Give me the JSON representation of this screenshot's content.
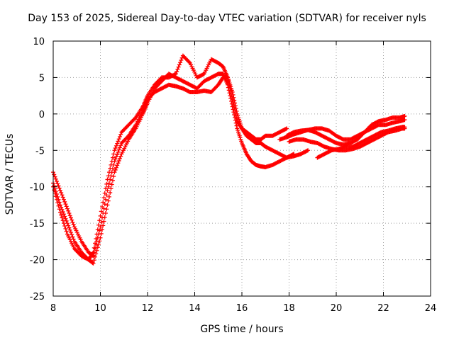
{
  "chart_data": {
    "type": "scatter",
    "title": "Day 153 of 2025, Sidereal Day-to-day VTEC variation (SDTVAR) for receiver nyls",
    "xlabel": "GPS time / hours",
    "ylabel": "SDTVAR / TECUs",
    "xlim": [
      8,
      24
    ],
    "ylim": [
      -25,
      10
    ],
    "xticks": [
      "8",
      "10",
      "12",
      "14",
      "16",
      "18",
      "20",
      "22",
      "24"
    ],
    "yticks": [
      "10",
      "5",
      "0",
      "-5",
      "-10",
      "-15",
      "-20",
      "-25"
    ],
    "grid": true,
    "marker": "plus",
    "color": "#ff0000",
    "series": [
      {
        "name": "track-1",
        "x": [
          8.0,
          8.3,
          8.6,
          8.9,
          9.2,
          9.5,
          9.7,
          10.0,
          10.3,
          10.6,
          10.9,
          11.2,
          11.5,
          11.8,
          12.0,
          12.3,
          12.6,
          12.9,
          13.2,
          13.5,
          13.8,
          14.1,
          14.4,
          14.7,
          15.0,
          15.2,
          15.4,
          15.6,
          15.8,
          16.0,
          16.2,
          16.4,
          16.6,
          16.8,
          17.0,
          17.3,
          17.6,
          17.9,
          18.2,
          18.5,
          18.8
        ],
        "y": [
          -8.0,
          -10.5,
          -13.0,
          -15.5,
          -17.5,
          -19.0,
          -19.5,
          -15.5,
          -10.5,
          -6.5,
          -4.0,
          -3.0,
          -1.5,
          0.5,
          2.0,
          3.0,
          3.5,
          4.0,
          3.8,
          3.5,
          3.0,
          3.0,
          3.2,
          3.0,
          4.0,
          5.0,
          5.0,
          3.0,
          0.0,
          -2.0,
          -3.0,
          -3.5,
          -4.0,
          -4.0,
          -4.5,
          -5.0,
          -5.5,
          -6.0,
          -5.8,
          -5.5,
          -5.0
        ]
      },
      {
        "name": "track-2",
        "x": [
          8.0,
          8.3,
          8.6,
          8.9,
          9.2,
          9.5,
          9.7,
          10.0,
          10.3,
          10.6,
          10.9,
          11.2,
          11.5,
          11.8,
          12.0,
          12.3,
          12.6,
          12.9,
          13.2,
          13.5,
          13.8,
          14.1,
          14.4,
          14.7,
          15.0,
          15.2,
          15.4,
          15.6,
          15.8,
          16.0,
          16.2,
          16.4,
          16.6,
          16.8,
          17.0,
          17.3,
          17.6,
          17.9,
          18.2
        ],
        "y": [
          -9.5,
          -12.5,
          -15.0,
          -17.5,
          -19.0,
          -20.0,
          -20.5,
          -17.0,
          -12.5,
          -8.0,
          -5.5,
          -3.5,
          -2.0,
          0.0,
          1.5,
          3.5,
          4.5,
          5.5,
          5.0,
          4.5,
          4.0,
          3.5,
          4.5,
          5.0,
          5.5,
          5.5,
          4.0,
          1.0,
          -2.0,
          -4.0,
          -5.5,
          -6.5,
          -7.0,
          -7.2,
          -7.3,
          -7.0,
          -6.5,
          -6.0,
          -5.5
        ]
      },
      {
        "name": "track-3",
        "x": [
          8.0,
          8.3,
          8.6,
          8.9,
          9.2,
          9.5,
          9.7,
          10.0,
          10.3,
          10.6,
          10.9,
          11.2,
          11.5,
          11.8,
          12.0,
          12.3,
          12.6,
          12.9,
          13.2,
          13.5,
          13.8,
          14.1,
          14.4,
          14.7,
          15.0,
          15.2,
          15.4,
          15.6,
          15.8,
          16.0,
          16.2,
          16.4,
          16.6,
          16.8,
          17.0,
          17.3,
          17.6,
          17.9
        ],
        "y": [
          -10.0,
          -13.5,
          -16.5,
          -18.5,
          -19.5,
          -20.0,
          -19.0,
          -14.0,
          -9.0,
          -5.0,
          -2.5,
          -1.5,
          -0.5,
          1.0,
          2.5,
          4.0,
          5.0,
          5.0,
          5.5,
          8.0,
          7.0,
          5.0,
          5.5,
          7.5,
          7.0,
          6.5,
          5.0,
          2.0,
          -1.0,
          -2.0,
          -2.5,
          -3.0,
          -3.5,
          -3.5,
          -3.0,
          -3.0,
          -2.5,
          -2.0
        ]
      },
      {
        "name": "track-4",
        "x": [
          17.9,
          18.2,
          18.5,
          18.8,
          19.1,
          19.4,
          19.7,
          20.0,
          20.3,
          20.6,
          20.9,
          21.2,
          21.5,
          21.8,
          22.1,
          22.4,
          22.7,
          22.9
        ],
        "y": [
          -3.0,
          -2.5,
          -2.3,
          -2.2,
          -2.5,
          -3.0,
          -3.5,
          -4.0,
          -4.2,
          -4.0,
          -3.5,
          -2.5,
          -1.5,
          -1.0,
          -0.8,
          -0.5,
          -0.5,
          -0.3
        ]
      },
      {
        "name": "track-5",
        "x": [
          17.6,
          17.9,
          18.2,
          18.5,
          18.8,
          19.1,
          19.4,
          19.7,
          20.0,
          20.3,
          20.6,
          20.9,
          21.2,
          21.5,
          21.8,
          22.1,
          22.4,
          22.7,
          22.9
        ],
        "y": [
          -3.5,
          -3.2,
          -2.8,
          -2.5,
          -2.2,
          -2.0,
          -2.0,
          -2.3,
          -3.0,
          -3.5,
          -3.5,
          -3.0,
          -2.5,
          -2.0,
          -1.5,
          -1.5,
          -1.2,
          -1.0,
          -0.8
        ]
      },
      {
        "name": "track-6",
        "x": [
          18.0,
          18.3,
          18.6,
          18.9,
          19.2,
          19.5,
          19.8,
          20.1,
          20.4,
          20.7,
          21.0,
          21.3,
          21.6,
          21.9,
          22.2,
          22.5,
          22.8,
          22.9
        ],
        "y": [
          -3.8,
          -3.5,
          -3.5,
          -3.8,
          -4.0,
          -4.5,
          -4.8,
          -5.0,
          -5.0,
          -4.8,
          -4.5,
          -4.0,
          -3.5,
          -3.0,
          -2.5,
          -2.3,
          -2.0,
          -2.0
        ]
      },
      {
        "name": "track-7",
        "x": [
          19.2,
          19.5,
          19.8,
          20.1,
          20.4,
          20.7,
          21.0,
          21.3,
          21.6,
          21.9,
          22.2,
          22.5,
          22.8,
          22.9
        ],
        "y": [
          -6.0,
          -5.5,
          -5.0,
          -4.8,
          -4.5,
          -4.5,
          -4.0,
          -3.5,
          -3.0,
          -2.5,
          -2.3,
          -2.0,
          -1.8,
          -1.8
        ]
      }
    ]
  }
}
